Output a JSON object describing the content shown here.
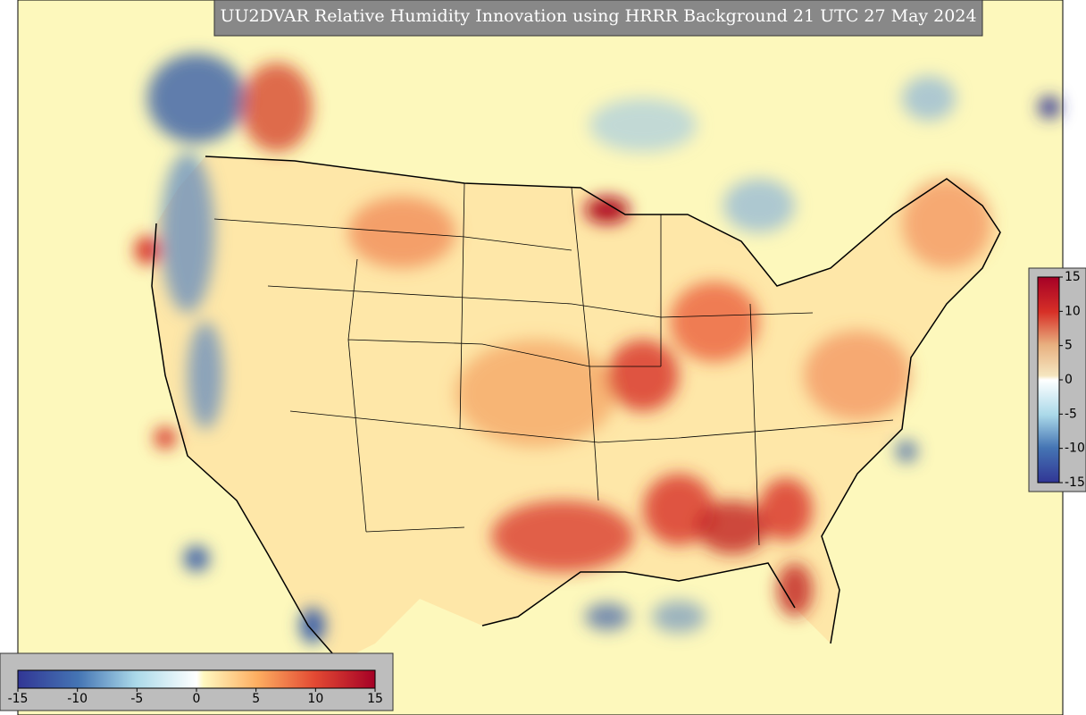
{
  "title": "UU2DVAR Relative Humidity Innovation using HRRR Background 21 UTC 27 May 2024",
  "colorbar_horizontal": {
    "lim": [
      -15,
      15
    ],
    "ticks": [
      -15,
      -10,
      -5,
      0,
      5,
      10,
      15
    ]
  },
  "colorbar_vertical": {
    "lim": [
      -15,
      15
    ],
    "ticks": [
      15,
      10,
      5,
      0,
      -5,
      -10,
      -15
    ]
  }
}
